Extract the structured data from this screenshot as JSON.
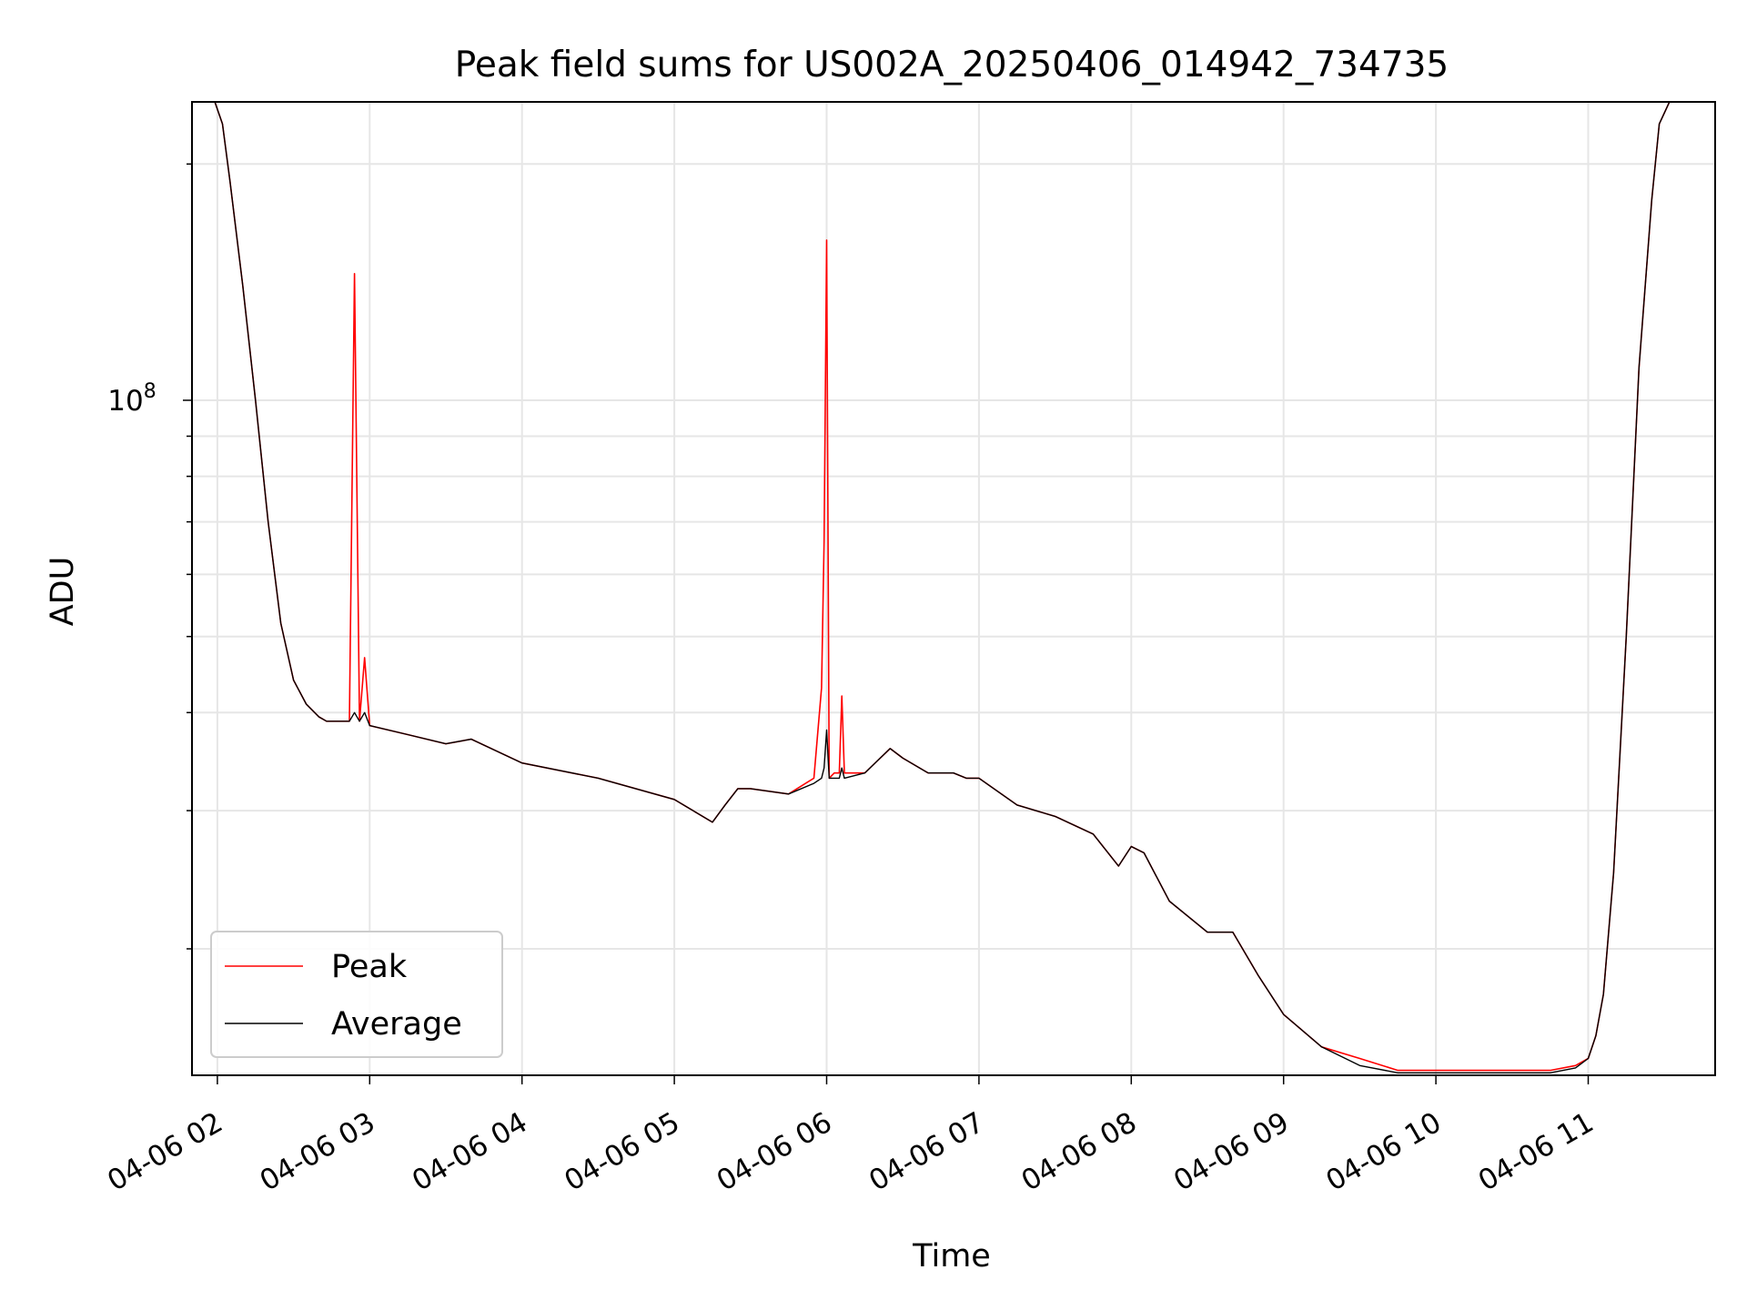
{
  "chart_data": {
    "type": "line",
    "title": "Peak field sums for US002A_20250406_014942_734735",
    "xlabel": "Time",
    "ylabel": "ADU",
    "x_unit": "datetime",
    "xlim": [
      "2025-04-06 01:50",
      "2025-04-06 11:50"
    ],
    "ylim": [
      13800000,
      240000000
    ],
    "yscale": "log",
    "x_ticks": [
      "04-06 02",
      "04-06 03",
      "04-06 04",
      "04-06 05",
      "04-06 06",
      "04-06 07",
      "04-06 08",
      "04-06 09",
      "04-06 10",
      "04-06 11"
    ],
    "y_tick_major": {
      "base": "10",
      "exp": "8"
    },
    "grid": true,
    "legend_position": "lower-left",
    "series": [
      {
        "name": "Peak",
        "color": "#ff0000",
        "x": [
          "01:59",
          "02:02",
          "02:05",
          "02:10",
          "02:15",
          "02:20",
          "02:25",
          "02:30",
          "02:35",
          "02:40",
          "02:43",
          "02:52",
          "02:54",
          "02:56",
          "02:58",
          "03:00",
          "03:15",
          "03:30",
          "03:40",
          "04:00",
          "04:30",
          "05:00",
          "05:15",
          "05:20",
          "05:25",
          "05:30",
          "05:45",
          "05:55",
          "05:58",
          "05:59",
          "06:00",
          "06:01",
          "06:03",
          "06:05",
          "06:06",
          "06:07",
          "06:15",
          "06:25",
          "06:30",
          "06:40",
          "06:50",
          "06:55",
          "07:00",
          "07:15",
          "07:30",
          "07:45",
          "07:55",
          "08:00",
          "08:05",
          "08:15",
          "08:30",
          "08:40",
          "08:50",
          "09:00",
          "09:15",
          "09:30",
          "09:45",
          "10:00",
          "10:15",
          "10:30",
          "10:45",
          "10:55",
          "11:00",
          "11:03",
          "11:06",
          "11:10",
          "11:15",
          "11:20",
          "11:25",
          "11:28",
          "11:32",
          "11:40"
        ],
        "y": [
          240000000,
          225000000,
          190000000,
          140000000,
          100000000,
          70000000,
          52000000,
          44000000,
          41000000,
          39500000,
          39000000,
          39000000,
          145000000,
          39000000,
          47000000,
          38500000,
          37500000,
          36500000,
          37000000,
          34500000,
          33000000,
          31000000,
          29000000,
          30500000,
          32000000,
          32000000,
          31500000,
          33000000,
          43000000,
          66000000,
          160000000,
          33000000,
          33500000,
          33500000,
          42000000,
          33500000,
          33500000,
          36000000,
          35000000,
          33500000,
          33500000,
          33000000,
          33000000,
          30500000,
          29500000,
          28000000,
          25500000,
          27000000,
          26500000,
          23000000,
          21000000,
          21000000,
          18500000,
          16500000,
          15000000,
          14500000,
          14000000,
          14000000,
          14000000,
          14000000,
          14000000,
          14200000,
          14500000,
          15500000,
          17500000,
          25000000,
          50000000,
          110000000,
          180000000,
          225000000,
          240000000,
          240000000
        ]
      },
      {
        "name": "Average",
        "color": "#000000",
        "x": [
          "01:59",
          "02:02",
          "02:05",
          "02:10",
          "02:15",
          "02:20",
          "02:25",
          "02:30",
          "02:35",
          "02:40",
          "02:43",
          "02:52",
          "02:54",
          "02:56",
          "02:58",
          "03:00",
          "03:15",
          "03:30",
          "03:40",
          "04:00",
          "04:30",
          "05:00",
          "05:15",
          "05:20",
          "05:25",
          "05:30",
          "05:45",
          "05:55",
          "05:58",
          "05:59",
          "06:00",
          "06:01",
          "06:03",
          "06:05",
          "06:06",
          "06:07",
          "06:15",
          "06:25",
          "06:30",
          "06:40",
          "06:50",
          "06:55",
          "07:00",
          "07:15",
          "07:30",
          "07:45",
          "07:55",
          "08:00",
          "08:05",
          "08:15",
          "08:30",
          "08:40",
          "08:50",
          "09:00",
          "09:15",
          "09:30",
          "09:45",
          "10:00",
          "10:15",
          "10:30",
          "10:45",
          "10:55",
          "11:00",
          "11:03",
          "11:06",
          "11:10",
          "11:15",
          "11:20",
          "11:25",
          "11:28",
          "11:32",
          "11:40"
        ],
        "y": [
          240000000,
          225000000,
          190000000,
          140000000,
          100000000,
          70000000,
          52000000,
          44000000,
          41000000,
          39500000,
          39000000,
          39000000,
          40000000,
          39000000,
          40000000,
          38500000,
          37500000,
          36500000,
          37000000,
          34500000,
          33000000,
          31000000,
          29000000,
          30500000,
          32000000,
          32000000,
          31500000,
          32500000,
          33000000,
          34000000,
          38000000,
          33000000,
          33000000,
          33000000,
          34000000,
          33000000,
          33500000,
          36000000,
          35000000,
          33500000,
          33500000,
          33000000,
          33000000,
          30500000,
          29500000,
          28000000,
          25500000,
          27000000,
          26500000,
          23000000,
          21000000,
          21000000,
          18500000,
          16500000,
          15000000,
          14200000,
          13900000,
          13900000,
          13900000,
          13900000,
          13900000,
          14100000,
          14500000,
          15500000,
          17500000,
          25000000,
          50000000,
          110000000,
          180000000,
          225000000,
          240000000,
          240000000
        ]
      }
    ]
  }
}
